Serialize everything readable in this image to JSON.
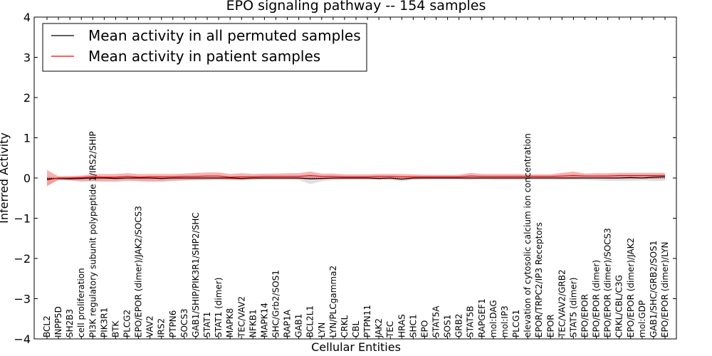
{
  "chart_data": {
    "type": "line",
    "title": "EPO signaling pathway -- 154 samples",
    "xlabel": "Cellular Entities",
    "ylabel": "Inferred Activity",
    "ylim": [
      -4,
      4
    ],
    "yticks": [
      "−4",
      "−3",
      "−2",
      "−1",
      "0",
      "1",
      "2",
      "3",
      "4"
    ],
    "grid": false,
    "legend_position": "top-left",
    "colors": {
      "permuted": "#000000",
      "patient": "#ff0000",
      "patient_band": "#f08080",
      "permuted_band": "#bfbfbf"
    },
    "categories": [
      "BCL2",
      "INPP5D",
      "SH2B3",
      "cell proliferation",
      "PI3K regulatory subunit polypeptide 1/IRS2/SHIP",
      "PIK3R1",
      "BTK",
      "PLCG2",
      "EPO/EPOR (dimer)/JAK2/SOCS3",
      "VAV2",
      "IRS2",
      "PTPN6",
      "SOCS3",
      "GAB1/SHIP/PIK3R1/SHP2/SHC",
      "STAT1",
      "STAT1 (dimer)",
      "MAPK8",
      "TEC/VAV2",
      "NFKB1",
      "MAPK14",
      "SHC/Grb2/SOS1",
      "RAP1A",
      "GAB1",
      "BCL2L1",
      "LYN",
      "LYN/PLCgamma2",
      "CRKL",
      "CBL",
      "PTPN11",
      "JAK2",
      "TEC",
      "HRAS",
      "SHC1",
      "EPO",
      "STAT5A",
      "SOS1",
      "GRB2",
      "STAT5B",
      "RAPGEF1",
      "mol:DAG",
      "mol:IP3",
      "PLCG1",
      "elevation of cytosolic calcium ion concentration",
      "EPOR/TRPC2/IP3 Receptors",
      "EPOR",
      "TEC/VAV2/GRB2",
      "STAT5 (dimer)",
      "EPO/EPOR",
      "EPO/EPOR (dimer)",
      "EPO/EPOR (dimer)/SOCS3",
      "CRKL/CBL/C3G",
      "EPO/EPOR (dimer)/JAK2",
      "mol:GDP",
      "GAB1/SHC/GRB2/SOS1",
      "EPO/EPOR (dimer)/LYN"
    ],
    "series": [
      {
        "name": "Mean activity in all permuted samples",
        "color": "#000000",
        "values": [
          -0.02,
          -0.01,
          -0.02,
          -0.01,
          0,
          0,
          -0.01,
          0,
          0,
          0,
          -0.01,
          0,
          0,
          0,
          0,
          0,
          0,
          -0.01,
          0,
          0,
          0,
          0,
          0,
          -0.02,
          -0.01,
          0,
          0,
          0,
          0,
          -0.01,
          0,
          -0.03,
          0,
          0,
          0,
          0,
          0,
          0,
          0,
          0,
          0,
          0,
          0,
          0,
          0,
          0,
          0,
          0,
          0,
          0,
          0,
          0.01,
          0,
          0.02,
          0.03
        ],
        "lower": [
          -0.2,
          -0.05,
          -0.05,
          -0.1,
          -0.08,
          -0.05,
          -0.05,
          -0.04,
          -0.06,
          -0.06,
          -0.06,
          -0.05,
          -0.05,
          -0.05,
          -0.04,
          -0.04,
          -0.04,
          -0.06,
          -0.04,
          -0.04,
          -0.04,
          -0.04,
          -0.05,
          -0.15,
          -0.08,
          -0.05,
          -0.04,
          -0.04,
          -0.04,
          -0.05,
          -0.05,
          -0.08,
          -0.05,
          -0.04,
          -0.04,
          -0.04,
          -0.04,
          -0.04,
          -0.04,
          -0.05,
          -0.05,
          -0.05,
          -0.05,
          -0.05,
          -0.05,
          -0.05,
          -0.05,
          -0.05,
          -0.06,
          -0.07,
          -0.07,
          -0.07,
          -0.06,
          -0.07,
          -0.07
        ],
        "upper": [
          0.05,
          0.03,
          0.03,
          0.03,
          0.04,
          0.04,
          0.04,
          0.04,
          0.04,
          0.04,
          0.04,
          0.04,
          0.04,
          0.04,
          0.04,
          0.04,
          0.04,
          0.04,
          0.04,
          0.04,
          0.04,
          0.04,
          0.04,
          0.05,
          0.04,
          0.04,
          0.04,
          0.04,
          0.04,
          0.04,
          0.04,
          0.04,
          0.04,
          0.04,
          0.04,
          0.04,
          0.04,
          0.04,
          0.04,
          0.04,
          0.04,
          0.04,
          0.04,
          0.04,
          0.04,
          0.04,
          0.04,
          0.05,
          0.06,
          0.07,
          0.07,
          0.07,
          0.07,
          0.08,
          0.09
        ]
      },
      {
        "name": "Mean activity in patient samples",
        "color": "#ff0000",
        "values": [
          -0.05,
          0.0,
          0.0,
          0.01,
          0.03,
          0.02,
          0.02,
          0.04,
          0.02,
          0.03,
          0.03,
          0.03,
          0.04,
          0.04,
          0.05,
          0.05,
          0.02,
          0.03,
          0.03,
          0.04,
          0.04,
          0.04,
          0.04,
          0.06,
          0.04,
          0.04,
          0.03,
          0.03,
          0.03,
          0.04,
          0.04,
          0.03,
          0.03,
          0.03,
          0.03,
          0.03,
          0.03,
          0.05,
          0.04,
          0.04,
          0.04,
          0.04,
          0.04,
          0.04,
          0.04,
          0.05,
          0.06,
          0.05,
          0.05,
          0.05,
          0.06,
          0.06,
          0.06,
          0.06,
          0.06
        ],
        "lower": [
          -0.2,
          -0.05,
          -0.06,
          -0.07,
          -0.08,
          -0.09,
          -0.09,
          -0.07,
          -0.08,
          -0.09,
          -0.09,
          -0.07,
          -0.06,
          -0.05,
          -0.05,
          -0.04,
          -0.05,
          -0.05,
          -0.04,
          -0.03,
          -0.03,
          -0.03,
          -0.03,
          -0.03,
          -0.03,
          -0.03,
          -0.03,
          -0.03,
          -0.03,
          -0.03,
          -0.03,
          -0.04,
          -0.03,
          -0.02,
          -0.02,
          -0.02,
          -0.02,
          -0.03,
          -0.02,
          -0.02,
          -0.02,
          -0.02,
          -0.01,
          -0.01,
          -0.01,
          -0.02,
          -0.02,
          -0.01,
          -0.01,
          -0.02,
          -0.02,
          -0.02,
          -0.02,
          -0.02,
          -0.02
        ],
        "upper": [
          0.2,
          0.04,
          0.05,
          0.06,
          0.1,
          0.1,
          0.1,
          0.12,
          0.1,
          0.1,
          0.1,
          0.1,
          0.11,
          0.13,
          0.14,
          0.14,
          0.1,
          0.12,
          0.1,
          0.11,
          0.11,
          0.12,
          0.12,
          0.16,
          0.11,
          0.11,
          0.09,
          0.09,
          0.09,
          0.1,
          0.1,
          0.1,
          0.09,
          0.08,
          0.08,
          0.08,
          0.08,
          0.13,
          0.1,
          0.1,
          0.1,
          0.1,
          0.09,
          0.09,
          0.09,
          0.13,
          0.16,
          0.11,
          0.12,
          0.12,
          0.13,
          0.13,
          0.13,
          0.13,
          0.13
        ]
      }
    ]
  }
}
